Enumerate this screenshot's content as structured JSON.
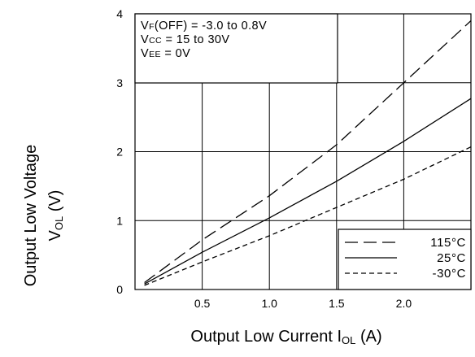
{
  "chart_data": {
    "type": "line",
    "xlabel": "Output Low Current I",
    "xlabel_sub": "OL",
    "xlabel_unit": " (A)",
    "ylabel_line1": "Output Low Voltage",
    "ylabel_line2": "V",
    "ylabel_sub": "OL",
    "ylabel_unit": " (V)",
    "xlim": [
      0,
      2.5
    ],
    "ylim": [
      0,
      4
    ],
    "x_ticks": [
      0.5,
      1.0,
      1.5,
      2.0
    ],
    "x_tick_labels": [
      "0.5",
      "1.0",
      "1.5",
      "2.0"
    ],
    "y_ticks": [
      0,
      1,
      2,
      3,
      4
    ],
    "y_tick_labels": [
      "0",
      "1",
      "2",
      "3",
      "4"
    ],
    "grid": true,
    "conditions": [
      {
        "main": "V",
        "sub": "F",
        "rest": "(OFF) = -3.0 to 0.8V"
      },
      {
        "main": "V",
        "sub": "CC",
        "rest": " = 15 to 30V"
      },
      {
        "main": "V",
        "sub": "EE",
        "rest": " = 0V"
      }
    ],
    "legend_position": "bottom-right",
    "series": [
      {
        "name": "115°C",
        "dash": "long-dash",
        "x": [
          0.07,
          0.5,
          1.0,
          1.5,
          2.0,
          2.5
        ],
        "y": [
          0.1,
          0.72,
          1.36,
          2.1,
          3.0,
          3.9
        ]
      },
      {
        "name": "25°C",
        "dash": "solid",
        "x": [
          0.07,
          0.5,
          1.0,
          1.5,
          2.0,
          2.5
        ],
        "y": [
          0.08,
          0.54,
          1.04,
          1.57,
          2.15,
          2.77
        ]
      },
      {
        "name": "-30°C",
        "dash": "short-dash",
        "x": [
          0.07,
          0.5,
          1.0,
          1.5,
          2.0,
          2.5
        ],
        "y": [
          0.06,
          0.4,
          0.78,
          1.19,
          1.6,
          2.07
        ]
      }
    ]
  }
}
